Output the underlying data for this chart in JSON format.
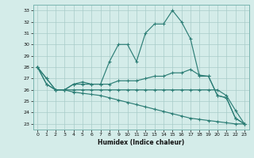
{
  "xlabel": "Humidex (Indice chaleur)",
  "bg_color": "#d4ece9",
  "grid_color": "#a8ccc8",
  "line_color": "#2d7e76",
  "xlim": [
    -0.5,
    23.5
  ],
  "ylim": [
    22.5,
    33.5
  ],
  "yticks": [
    23,
    24,
    25,
    26,
    27,
    28,
    29,
    30,
    31,
    32,
    33
  ],
  "xticks": [
    0,
    1,
    2,
    3,
    4,
    5,
    6,
    7,
    8,
    9,
    10,
    11,
    12,
    13,
    14,
    15,
    16,
    17,
    18,
    19,
    20,
    21,
    22,
    23
  ],
  "series": [
    [
      28,
      27,
      26,
      26,
      26.5,
      26.5,
      26.5,
      26.5,
      28.5,
      30,
      30,
      28.5,
      31,
      31.8,
      31.8,
      33,
      32,
      30.5,
      27.2,
      27.2,
      25.5,
      25.3,
      23.5,
      23
    ],
    [
      28,
      27,
      26,
      26,
      26.5,
      26.7,
      26.5,
      26.5,
      26.5,
      26.8,
      26.8,
      26.8,
      27.0,
      27.2,
      27.2,
      27.5,
      27.5,
      27.8,
      27.3,
      27.2,
      25.5,
      25.3,
      23.5,
      23
    ],
    [
      28,
      26.5,
      26,
      26,
      26,
      26,
      26,
      26,
      26,
      26,
      26,
      26,
      26,
      26,
      26,
      26,
      26,
      26,
      26,
      26,
      26,
      25.5,
      24.2,
      23
    ],
    [
      28,
      26.5,
      26,
      26,
      25.8,
      25.7,
      25.6,
      25.5,
      25.3,
      25.1,
      24.9,
      24.7,
      24.5,
      24.3,
      24.1,
      23.9,
      23.7,
      23.5,
      23.4,
      23.3,
      23.2,
      23.1,
      23.0,
      23
    ]
  ]
}
